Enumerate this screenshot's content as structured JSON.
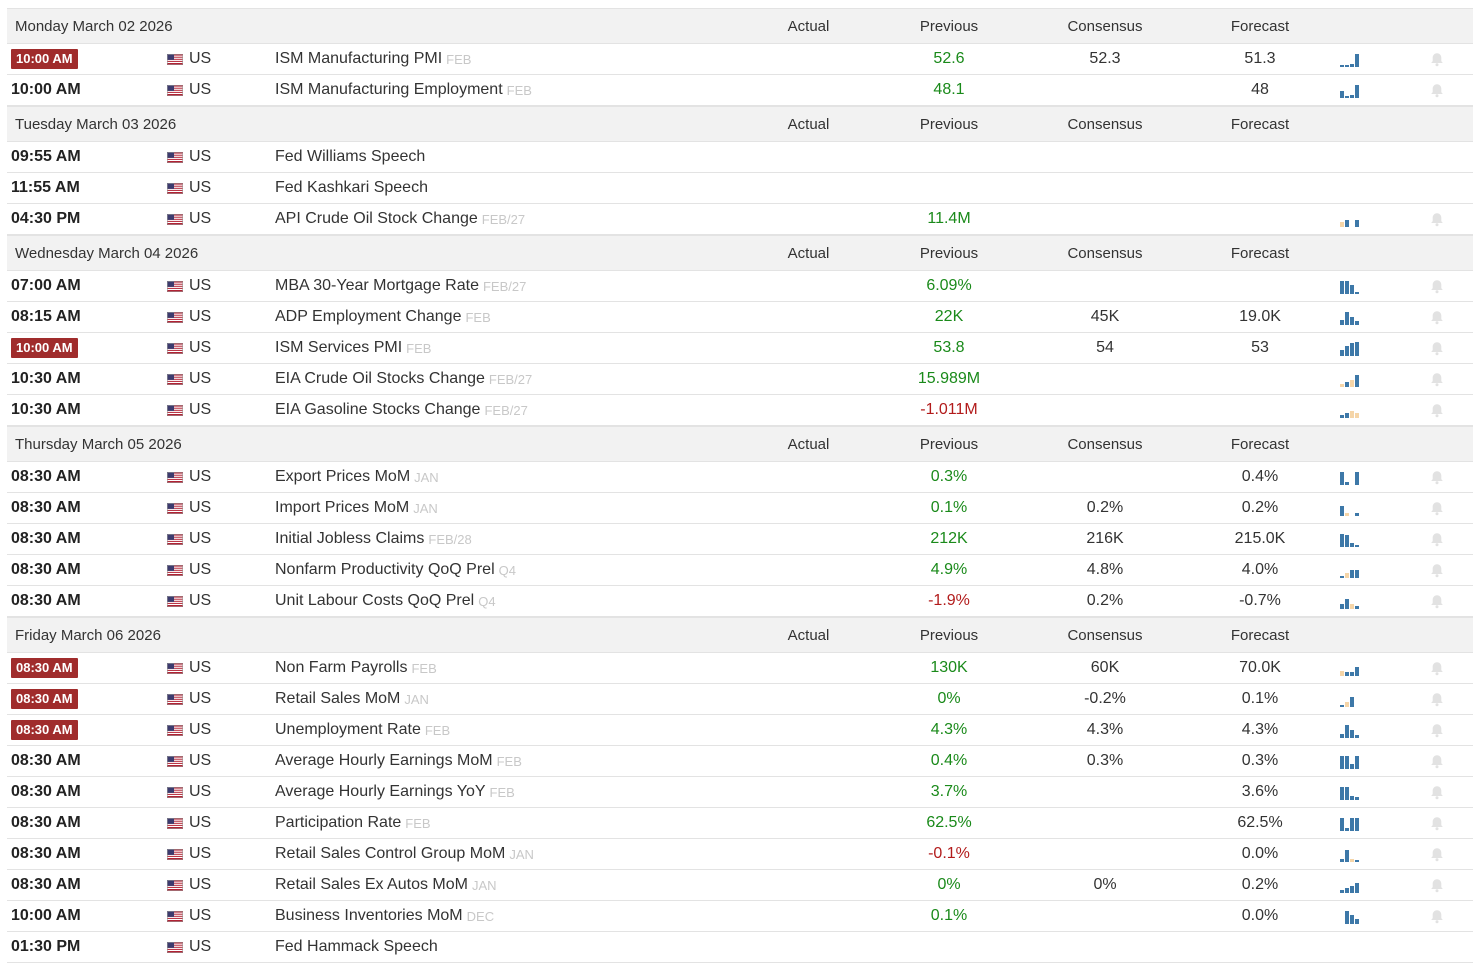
{
  "columns": {
    "actual": "Actual",
    "previous": "Previous",
    "consensus": "Consensus",
    "forecast": "Forecast"
  },
  "colors": {
    "highlight_badge": "#a02c2c",
    "positive": "#1a8a1a",
    "negative": "#b21b1b",
    "spark_blue": "#3d78a8",
    "spark_orange": "#f5d5a8"
  },
  "days": [
    {
      "date": "Monday March 02 2026",
      "events": [
        {
          "time": "10:00 AM",
          "highlight": true,
          "country": "US",
          "name": "ISM Manufacturing PMI",
          "period": "FEB",
          "actual": "",
          "previous": "52.6",
          "previous_tone": "pos",
          "consensus": "52.3",
          "forecast": "51.3",
          "spark": [
            [
              2,
              "b"
            ],
            [
              2,
              "b"
            ],
            [
              3,
              "b"
            ],
            [
              13,
              "b"
            ]
          ],
          "bell": true
        },
        {
          "time": "10:00 AM",
          "highlight": false,
          "country": "US",
          "name": "ISM Manufacturing Employment",
          "period": "FEB",
          "actual": "",
          "previous": "48.1",
          "previous_tone": "pos",
          "consensus": "",
          "forecast": "48",
          "spark": [
            [
              7,
              "b"
            ],
            [
              2,
              "b"
            ],
            [
              3,
              "b"
            ],
            [
              13,
              "b"
            ]
          ],
          "bell": true
        }
      ]
    },
    {
      "date": "Tuesday March 03 2026",
      "events": [
        {
          "time": "09:55 AM",
          "highlight": false,
          "country": "US",
          "name": "Fed Williams Speech",
          "period": "",
          "actual": "",
          "previous": "",
          "previous_tone": "",
          "consensus": "",
          "forecast": "",
          "spark": [],
          "bell": false
        },
        {
          "time": "11:55 AM",
          "highlight": false,
          "country": "US",
          "name": "Fed Kashkari Speech",
          "period": "",
          "actual": "",
          "previous": "",
          "previous_tone": "",
          "consensus": "",
          "forecast": "",
          "spark": [],
          "bell": false
        },
        {
          "time": "04:30 PM",
          "highlight": false,
          "country": "US",
          "name": "API Crude Oil Stock Change",
          "period": "FEB/27",
          "actual": "",
          "previous": "11.4M",
          "previous_tone": "pos",
          "consensus": "",
          "forecast": "",
          "spark": [
            [
              5,
              "o"
            ],
            [
              7,
              "b"
            ],
            [
              0,
              "b"
            ],
            [
              7,
              "b"
            ]
          ],
          "bell": true
        }
      ]
    },
    {
      "date": "Wednesday March 04 2026",
      "events": [
        {
          "time": "07:00 AM",
          "highlight": false,
          "country": "US",
          "name": "MBA 30-Year Mortgage Rate",
          "period": "FEB/27",
          "actual": "",
          "previous": "6.09%",
          "previous_tone": "pos",
          "consensus": "",
          "forecast": "",
          "spark": [
            [
              13,
              "b"
            ],
            [
              13,
              "b"
            ],
            [
              9,
              "b"
            ],
            [
              2,
              "b"
            ]
          ],
          "bell": true
        },
        {
          "time": "08:15 AM",
          "highlight": false,
          "country": "US",
          "name": "ADP Employment Change",
          "period": "FEB",
          "actual": "",
          "previous": "22K",
          "previous_tone": "pos",
          "consensus": "45K",
          "forecast": "19.0K",
          "spark": [
            [
              5,
              "b"
            ],
            [
              13,
              "b"
            ],
            [
              8,
              "b"
            ],
            [
              4,
              "b"
            ]
          ],
          "bell": true
        },
        {
          "time": "10:00 AM",
          "highlight": true,
          "country": "US",
          "name": "ISM Services PMI",
          "period": "FEB",
          "actual": "",
          "previous": "53.8",
          "previous_tone": "pos",
          "consensus": "54",
          "forecast": "53",
          "spark": [
            [
              6,
              "b"
            ],
            [
              10,
              "b"
            ],
            [
              13,
              "b"
            ],
            [
              14,
              "b"
            ]
          ],
          "bell": true
        },
        {
          "time": "10:30 AM",
          "highlight": false,
          "country": "US",
          "name": "EIA Crude Oil Stocks Change",
          "period": "FEB/27",
          "actual": "",
          "previous": "15.989M",
          "previous_tone": "pos",
          "consensus": "",
          "forecast": "",
          "spark": [
            [
              3,
              "o"
            ],
            [
              5,
              "b"
            ],
            [
              7,
              "o"
            ],
            [
              12,
              "b"
            ]
          ],
          "bell": true
        },
        {
          "time": "10:30 AM",
          "highlight": false,
          "country": "US",
          "name": "EIA Gasoline Stocks Change",
          "period": "FEB/27",
          "actual": "",
          "previous": "-1.011M",
          "previous_tone": "neg",
          "consensus": "",
          "forecast": "",
          "spark": [
            [
              3,
              "b"
            ],
            [
              5,
              "b"
            ],
            [
              7,
              "o"
            ],
            [
              5,
              "o"
            ]
          ],
          "bell": true
        }
      ]
    },
    {
      "date": "Thursday March 05 2026",
      "events": [
        {
          "time": "08:30 AM",
          "highlight": false,
          "country": "US",
          "name": "Export Prices MoM",
          "period": "JAN",
          "actual": "",
          "previous": "0.3%",
          "previous_tone": "pos",
          "consensus": "",
          "forecast": "0.4%",
          "spark": [
            [
              13,
              "b"
            ],
            [
              3,
              "b"
            ],
            [
              0,
              "b"
            ],
            [
              13,
              "b"
            ]
          ],
          "bell": true
        },
        {
          "time": "08:30 AM",
          "highlight": false,
          "country": "US",
          "name": "Import Prices MoM",
          "period": "JAN",
          "actual": "",
          "previous": "0.1%",
          "previous_tone": "pos",
          "consensus": "0.2%",
          "forecast": "0.2%",
          "spark": [
            [
              10,
              "b"
            ],
            [
              3,
              "o"
            ],
            [
              0,
              "b"
            ],
            [
              3,
              "b"
            ]
          ],
          "bell": true
        },
        {
          "time": "08:30 AM",
          "highlight": false,
          "country": "US",
          "name": "Initial Jobless Claims",
          "period": "FEB/28",
          "actual": "",
          "previous": "212K",
          "previous_tone": "pos",
          "consensus": "216K",
          "forecast": "215.0K",
          "spark": [
            [
              13,
              "b"
            ],
            [
              12,
              "b"
            ],
            [
              4,
              "b"
            ],
            [
              2,
              "b"
            ]
          ],
          "bell": true
        },
        {
          "time": "08:30 AM",
          "highlight": false,
          "country": "US",
          "name": "Nonfarm Productivity QoQ Prel",
          "period": "Q4",
          "actual": "",
          "previous": "4.9%",
          "previous_tone": "pos",
          "consensus": "4.8%",
          "forecast": "4.0%",
          "spark": [
            [
              2,
              "b"
            ],
            [
              5,
              "o"
            ],
            [
              8,
              "b"
            ],
            [
              8,
              "b"
            ]
          ],
          "bell": true
        },
        {
          "time": "08:30 AM",
          "highlight": false,
          "country": "US",
          "name": "Unit Labour Costs QoQ Prel",
          "period": "Q4",
          "actual": "",
          "previous": "-1.9%",
          "previous_tone": "neg",
          "consensus": "0.2%",
          "forecast": "-0.7%",
          "spark": [
            [
              5,
              "b"
            ],
            [
              10,
              "b"
            ],
            [
              5,
              "o"
            ],
            [
              3,
              "b"
            ]
          ],
          "bell": true
        }
      ]
    },
    {
      "date": "Friday March 06 2026",
      "events": [
        {
          "time": "08:30 AM",
          "highlight": true,
          "country": "US",
          "name": "Non Farm Payrolls",
          "period": "FEB",
          "actual": "",
          "previous": "130K",
          "previous_tone": "pos",
          "consensus": "60K",
          "forecast": "70.0K",
          "spark": [
            [
              5,
              "o"
            ],
            [
              4,
              "b"
            ],
            [
              4,
              "b"
            ],
            [
              9,
              "b"
            ]
          ],
          "bell": true
        },
        {
          "time": "08:30 AM",
          "highlight": true,
          "country": "US",
          "name": "Retail Sales MoM",
          "period": "JAN",
          "actual": "",
          "previous": "0%",
          "previous_tone": "pos",
          "consensus": "-0.2%",
          "forecast": "0.1%",
          "spark": [
            [
              2,
              "b"
            ],
            [
              5,
              "o"
            ],
            [
              10,
              "b"
            ],
            [
              0,
              "b"
            ]
          ],
          "bell": true
        },
        {
          "time": "08:30 AM",
          "highlight": true,
          "country": "US",
          "name": "Unemployment Rate",
          "period": "FEB",
          "actual": "",
          "previous": "4.3%",
          "previous_tone": "pos",
          "consensus": "4.3%",
          "forecast": "4.3%",
          "spark": [
            [
              4,
              "b"
            ],
            [
              13,
              "b"
            ],
            [
              8,
              "b"
            ],
            [
              3,
              "b"
            ]
          ],
          "bell": true
        },
        {
          "time": "08:30 AM",
          "highlight": false,
          "country": "US",
          "name": "Average Hourly Earnings MoM",
          "period": "FEB",
          "actual": "",
          "previous": "0.4%",
          "previous_tone": "pos",
          "consensus": "0.3%",
          "forecast": "0.3%",
          "spark": [
            [
              13,
              "b"
            ],
            [
              13,
              "b"
            ],
            [
              5,
              "b"
            ],
            [
              13,
              "b"
            ]
          ],
          "bell": true
        },
        {
          "time": "08:30 AM",
          "highlight": false,
          "country": "US",
          "name": "Average Hourly Earnings YoY",
          "period": "FEB",
          "actual": "",
          "previous": "3.7%",
          "previous_tone": "pos",
          "consensus": "",
          "forecast": "3.6%",
          "spark": [
            [
              13,
              "b"
            ],
            [
              13,
              "b"
            ],
            [
              4,
              "b"
            ],
            [
              3,
              "b"
            ]
          ],
          "bell": true
        },
        {
          "time": "08:30 AM",
          "highlight": false,
          "country": "US",
          "name": "Participation Rate",
          "period": "FEB",
          "actual": "",
          "previous": "62.5%",
          "previous_tone": "pos",
          "consensus": "",
          "forecast": "62.5%",
          "spark": [
            [
              13,
              "b"
            ],
            [
              3,
              "b"
            ],
            [
              13,
              "b"
            ],
            [
              13,
              "b"
            ]
          ],
          "bell": true
        },
        {
          "time": "08:30 AM",
          "highlight": false,
          "country": "US",
          "name": "Retail Sales Control Group MoM",
          "period": "JAN",
          "actual": "",
          "previous": "-0.1%",
          "previous_tone": "neg",
          "consensus": "",
          "forecast": "0.0%",
          "spark": [
            [
              3,
              "b"
            ],
            [
              12,
              "b"
            ],
            [
              3,
              "o"
            ],
            [
              2,
              "b"
            ]
          ],
          "bell": true
        },
        {
          "time": "08:30 AM",
          "highlight": false,
          "country": "US",
          "name": "Retail Sales Ex Autos MoM",
          "period": "JAN",
          "actual": "",
          "previous": "0%",
          "previous_tone": "pos",
          "consensus": "0%",
          "forecast": "0.2%",
          "spark": [
            [
              3,
              "b"
            ],
            [
              5,
              "b"
            ],
            [
              7,
              "b"
            ],
            [
              10,
              "b"
            ]
          ],
          "bell": true
        },
        {
          "time": "10:00 AM",
          "highlight": false,
          "country": "US",
          "name": "Business Inventories MoM",
          "period": "DEC",
          "actual": "",
          "previous": "0.1%",
          "previous_tone": "pos",
          "consensus": "",
          "forecast": "0.0%",
          "spark": [
            [
              0,
              "b"
            ],
            [
              13,
              "b"
            ],
            [
              9,
              "b"
            ],
            [
              5,
              "b"
            ]
          ],
          "bell": true
        },
        {
          "time": "01:30 PM",
          "highlight": false,
          "country": "US",
          "name": "Fed Hammack Speech",
          "period": "",
          "actual": "",
          "previous": "",
          "previous_tone": "",
          "consensus": "",
          "forecast": "",
          "spark": [],
          "bell": false
        }
      ]
    }
  ]
}
